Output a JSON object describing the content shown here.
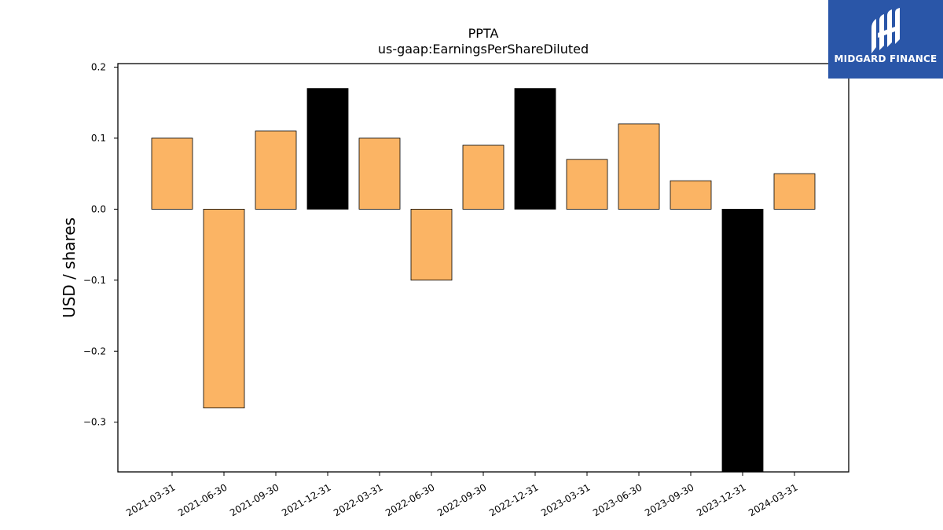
{
  "chart_data": {
    "type": "bar",
    "title": "PPTA",
    "subtitle": "us-gaap:EarningsPerShareDiluted",
    "xlabel": "",
    "ylabel": "USD / shares",
    "categories": [
      "2021-03-31",
      "2021-06-30",
      "2021-09-30",
      "2021-12-31",
      "2022-03-31",
      "2022-06-30",
      "2022-09-30",
      "2022-12-31",
      "2023-03-31",
      "2023-06-30",
      "2023-09-30",
      "2023-12-31",
      "2024-03-31"
    ],
    "values": [
      0.1,
      -0.28,
      0.11,
      0.17,
      0.1,
      -0.1,
      0.09,
      0.17,
      0.07,
      0.12,
      0.04,
      -0.37,
      0.05
    ],
    "highlighted": [
      "2021-12-31",
      "2022-12-31",
      "2023-12-31"
    ],
    "ylim": [
      -0.37,
      0.205
    ],
    "yticks": [
      -0.3,
      -0.2,
      -0.1,
      0.0,
      0.1,
      0.2
    ],
    "ytick_labels": [
      "−0.3",
      "−0.2",
      "−0.1",
      "0.0",
      "0.1",
      "0.2"
    ],
    "colors": {
      "bar": "#fbb464",
      "highlight": "#000000",
      "edge": "#000000"
    },
    "grid": false
  },
  "logo": {
    "text": "MIDGARD FINANCE",
    "color": "#2a56a8"
  }
}
